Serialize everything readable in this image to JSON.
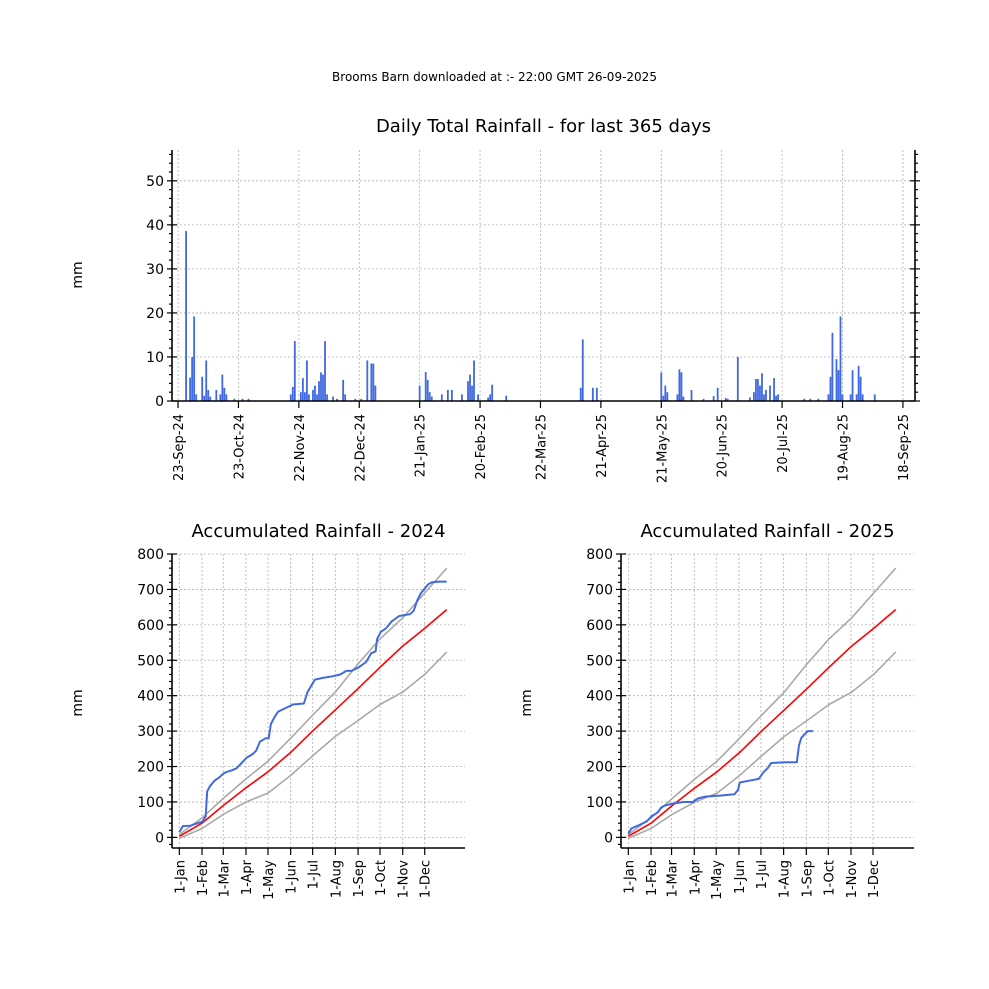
{
  "header": "Brooms Barn downloaded at :- 22:00 GMT 26-09-2025",
  "chart_data": [
    {
      "type": "bar",
      "title": "Daily Total Rainfall - for last 365 days",
      "ylabel": "mm",
      "ylim": [
        0,
        57
      ],
      "yticks": [
        0,
        10,
        20,
        30,
        40,
        50
      ],
      "xlim": [
        -3,
        366
      ],
      "x_tick_days": [
        0,
        30,
        60,
        90,
        120,
        150,
        180,
        210,
        240,
        270,
        300,
        330,
        360
      ],
      "x_tick_labels": [
        "23-Sep-24",
        "23-Oct-24",
        "22-Nov-24",
        "22-Dec-24",
        "21-Jan-25",
        "20-Feb-25",
        "22-Mar-25",
        "21-Apr-25",
        "21-May-25",
        "20-Jun-25",
        "20-Jul-25",
        "19-Aug-25",
        "18-Sep-25"
      ],
      "color": "#4169e1",
      "bars": [
        [
          4,
          38.6
        ],
        [
          6,
          5.3
        ],
        [
          7,
          10
        ],
        [
          8,
          19.2
        ],
        [
          9,
          1.5
        ],
        [
          12,
          5.5
        ],
        [
          13,
          1.2
        ],
        [
          14,
          9.2
        ],
        [
          15,
          2.5
        ],
        [
          16,
          1
        ],
        [
          19,
          2.5
        ],
        [
          21,
          1.5
        ],
        [
          22,
          6
        ],
        [
          23,
          3
        ],
        [
          24,
          1.5
        ],
        [
          28,
          0.5
        ],
        [
          32,
          0.5
        ],
        [
          35,
          0.5
        ],
        [
          56,
          1.5
        ],
        [
          57,
          3.2
        ],
        [
          58,
          13.6
        ],
        [
          61,
          2
        ],
        [
          62,
          5.2
        ],
        [
          63,
          2
        ],
        [
          64,
          9.2
        ],
        [
          65,
          1.5
        ],
        [
          67,
          2.5
        ],
        [
          68,
          3.5
        ],
        [
          69,
          1.5
        ],
        [
          70,
          4.5
        ],
        [
          71,
          6.5
        ],
        [
          72,
          6
        ],
        [
          73,
          13.6
        ],
        [
          74,
          1.5
        ],
        [
          77,
          1
        ],
        [
          79,
          0.5
        ],
        [
          82,
          4.8
        ],
        [
          83,
          1.5
        ],
        [
          88,
          0.5
        ],
        [
          91,
          0.5
        ],
        [
          94,
          9.2
        ],
        [
          96,
          8.5
        ],
        [
          97,
          8.5
        ],
        [
          98,
          3.5
        ],
        [
          120,
          3.5
        ],
        [
          123,
          6.6
        ],
        [
          124,
          4.8
        ],
        [
          125,
          2
        ],
        [
          126,
          1
        ],
        [
          131,
          1.5
        ],
        [
          134,
          2.5
        ],
        [
          136,
          2.5
        ],
        [
          141,
          1.5
        ],
        [
          144,
          4.5
        ],
        [
          145,
          6
        ],
        [
          146,
          3.5
        ],
        [
          147,
          9.2
        ],
        [
          149,
          1.5
        ],
        [
          154,
          0.8
        ],
        [
          155,
          1.5
        ],
        [
          156,
          3.7
        ],
        [
          163,
          1.2
        ],
        [
          200,
          3
        ],
        [
          201,
          14
        ],
        [
          206,
          3
        ],
        [
          208,
          3
        ],
        [
          240,
          6.5
        ],
        [
          241,
          1.2
        ],
        [
          242,
          3.5
        ],
        [
          243,
          2
        ],
        [
          248,
          1.5
        ],
        [
          249,
          7.2
        ],
        [
          250,
          6.5
        ],
        [
          251,
          1
        ],
        [
          255,
          2.5
        ],
        [
          261,
          0.5
        ],
        [
          266,
          1.1
        ],
        [
          268,
          3
        ],
        [
          272,
          0.7
        ],
        [
          273,
          0.5
        ],
        [
          278,
          10
        ],
        [
          284,
          0.8
        ],
        [
          286,
          2
        ],
        [
          287,
          5
        ],
        [
          288,
          5
        ],
        [
          289,
          3.5
        ],
        [
          290,
          6.3
        ],
        [
          291,
          1.5
        ],
        [
          292,
          2.5
        ],
        [
          294,
          3.5
        ],
        [
          296,
          5.2
        ],
        [
          297,
          1.2
        ],
        [
          298,
          1.5
        ],
        [
          311,
          0.5
        ],
        [
          314,
          0.5
        ],
        [
          318,
          0.5
        ],
        [
          323,
          1.5
        ],
        [
          324,
          5.5
        ],
        [
          325,
          15.5
        ],
        [
          327,
          9.5
        ],
        [
          328,
          7
        ],
        [
          329,
          19.2
        ],
        [
          330,
          1.5
        ],
        [
          334,
          1.5
        ],
        [
          335,
          7
        ],
        [
          337,
          1.5
        ],
        [
          338,
          8
        ],
        [
          339,
          5.5
        ],
        [
          340,
          1.5
        ],
        [
          346,
          1.5
        ]
      ]
    },
    {
      "type": "line",
      "title": "Accumulated Rainfall - 2024",
      "ylabel": "mm",
      "ylim": [
        -30,
        800
      ],
      "yticks": [
        0,
        100,
        200,
        300,
        400,
        500,
        600,
        700,
        800
      ],
      "xlim": [
        -10,
        390
      ],
      "x_tick_days": [
        0,
        31,
        60,
        91,
        121,
        152,
        182,
        213,
        244,
        274,
        305,
        335
      ],
      "x_tick_labels": [
        "1-Jan",
        "1-Feb",
        "1-Mar",
        "1-Apr",
        "1-May",
        "1-Jun",
        "1-Jul",
        "1-Aug",
        "1-Sep",
        "1-Oct",
        "1-Nov",
        "1-Dec"
      ],
      "series": [
        {
          "color": "#a9a9a9",
          "points": [
            [
              0,
              8
            ],
            [
              31,
              55
            ],
            [
              60,
              110
            ],
            [
              91,
              165
            ],
            [
              121,
              215
            ],
            [
              152,
              280
            ],
            [
              182,
              345
            ],
            [
              213,
              410
            ],
            [
              244,
              490
            ],
            [
              274,
              560
            ],
            [
              305,
              620
            ],
            [
              335,
              690
            ],
            [
              365,
              760
            ]
          ]
        },
        {
          "color": "#ff0000",
          "points": [
            [
              0,
              3
            ],
            [
              31,
              40
            ],
            [
              60,
              90
            ],
            [
              91,
              140
            ],
            [
              121,
              185
            ],
            [
              152,
              240
            ],
            [
              182,
              300
            ],
            [
              213,
              360
            ],
            [
              244,
              420
            ],
            [
              274,
              480
            ],
            [
              305,
              540
            ],
            [
              335,
              590
            ],
            [
              365,
              643
            ]
          ]
        },
        {
          "color": "#a9a9a9",
          "points": [
            [
              0,
              -3
            ],
            [
              31,
              25
            ],
            [
              60,
              65
            ],
            [
              91,
              100
            ],
            [
              121,
              125
            ],
            [
              152,
              175
            ],
            [
              182,
              230
            ],
            [
              213,
              285
            ],
            [
              244,
              330
            ],
            [
              274,
              375
            ],
            [
              305,
              410
            ],
            [
              335,
              460
            ],
            [
              365,
              523
            ]
          ]
        },
        {
          "color": "#4169e1",
          "points": [
            [
              0,
              15
            ],
            [
              5,
              32
            ],
            [
              15,
              33
            ],
            [
              25,
              40
            ],
            [
              32,
              45
            ],
            [
              36,
              60
            ],
            [
              38,
              130
            ],
            [
              42,
              145
            ],
            [
              48,
              160
            ],
            [
              55,
              170
            ],
            [
              60,
              180
            ],
            [
              65,
              185
            ],
            [
              70,
              188
            ],
            [
              78,
              195
            ],
            [
              85,
              210
            ],
            [
              92,
              225
            ],
            [
              100,
              235
            ],
            [
              105,
              245
            ],
            [
              110,
              270
            ],
            [
              118,
              280
            ],
            [
              122,
              280
            ],
            [
              125,
              320
            ],
            [
              130,
              340
            ],
            [
              135,
              355
            ],
            [
              145,
              365
            ],
            [
              155,
              375
            ],
            [
              170,
              378
            ],
            [
              175,
              410
            ],
            [
              185,
              445
            ],
            [
              195,
              450
            ],
            [
              210,
              455
            ],
            [
              220,
              460
            ],
            [
              228,
              470
            ],
            [
              235,
              470
            ],
            [
              245,
              480
            ],
            [
              255,
              495
            ],
            [
              262,
              520
            ],
            [
              268,
              525
            ],
            [
              270,
              560
            ],
            [
              275,
              580
            ],
            [
              282,
              590
            ],
            [
              290,
              610
            ],
            [
              300,
              625
            ],
            [
              315,
              630
            ],
            [
              320,
              640
            ],
            [
              325,
              670
            ],
            [
              330,
              690
            ],
            [
              336,
              705
            ],
            [
              340,
              715
            ],
            [
              345,
              720
            ],
            [
              355,
              722
            ],
            [
              365,
              722
            ]
          ]
        }
      ]
    },
    {
      "type": "line",
      "title": "Accumulated Rainfall - 2025",
      "ylabel": "mm",
      "ylim": [
        -30,
        800
      ],
      "yticks": [
        0,
        100,
        200,
        300,
        400,
        500,
        600,
        700,
        800
      ],
      "xlim": [
        -10,
        390
      ],
      "x_tick_days": [
        0,
        31,
        59,
        90,
        120,
        151,
        181,
        212,
        243,
        273,
        304,
        334
      ],
      "x_tick_labels": [
        "1-Jan",
        "1-Feb",
        "1-Mar",
        "1-Apr",
        "1-May",
        "1-Jun",
        "1-Jul",
        "1-Aug",
        "1-Sep",
        "1-Oct",
        "1-Nov",
        "1-Dec"
      ],
      "series": [
        {
          "color": "#a9a9a9",
          "points": [
            [
              0,
              8
            ],
            [
              31,
              55
            ],
            [
              60,
              110
            ],
            [
              91,
              165
            ],
            [
              121,
              215
            ],
            [
              152,
              280
            ],
            [
              182,
              345
            ],
            [
              213,
              410
            ],
            [
              244,
              490
            ],
            [
              274,
              560
            ],
            [
              305,
              620
            ],
            [
              335,
              690
            ],
            [
              365,
              760
            ]
          ]
        },
        {
          "color": "#ff0000",
          "points": [
            [
              0,
              3
            ],
            [
              31,
              40
            ],
            [
              60,
              90
            ],
            [
              91,
              140
            ],
            [
              121,
              185
            ],
            [
              152,
              240
            ],
            [
              182,
              300
            ],
            [
              213,
              360
            ],
            [
              244,
              420
            ],
            [
              274,
              480
            ],
            [
              305,
              540
            ],
            [
              335,
              590
            ],
            [
              365,
              643
            ]
          ]
        },
        {
          "color": "#a9a9a9",
          "points": [
            [
              0,
              -3
            ],
            [
              31,
              25
            ],
            [
              60,
              65
            ],
            [
              91,
              100
            ],
            [
              121,
              125
            ],
            [
              152,
              175
            ],
            [
              182,
              230
            ],
            [
              213,
              285
            ],
            [
              244,
              330
            ],
            [
              274,
              375
            ],
            [
              305,
              410
            ],
            [
              335,
              460
            ],
            [
              365,
              523
            ]
          ]
        },
        {
          "color": "#4169e1",
          "points": [
            [
              0,
              10
            ],
            [
              4,
              25
            ],
            [
              15,
              35
            ],
            [
              25,
              45
            ],
            [
              32,
              60
            ],
            [
              40,
              70
            ],
            [
              45,
              85
            ],
            [
              50,
              90
            ],
            [
              60,
              95
            ],
            [
              75,
              100
            ],
            [
              88,
              100
            ],
            [
              95,
              110
            ],
            [
              105,
              115
            ],
            [
              125,
              118
            ],
            [
              145,
              122
            ],
            [
              150,
              135
            ],
            [
              152,
              155
            ],
            [
              165,
              160
            ],
            [
              178,
              165
            ],
            [
              185,
              185
            ],
            [
              190,
              195
            ],
            [
              195,
              210
            ],
            [
              215,
              212
            ],
            [
              230,
              212
            ],
            [
              233,
              260
            ],
            [
              236,
              280
            ],
            [
              240,
              290
            ],
            [
              245,
              300
            ],
            [
              252,
              300
            ]
          ]
        }
      ]
    }
  ]
}
